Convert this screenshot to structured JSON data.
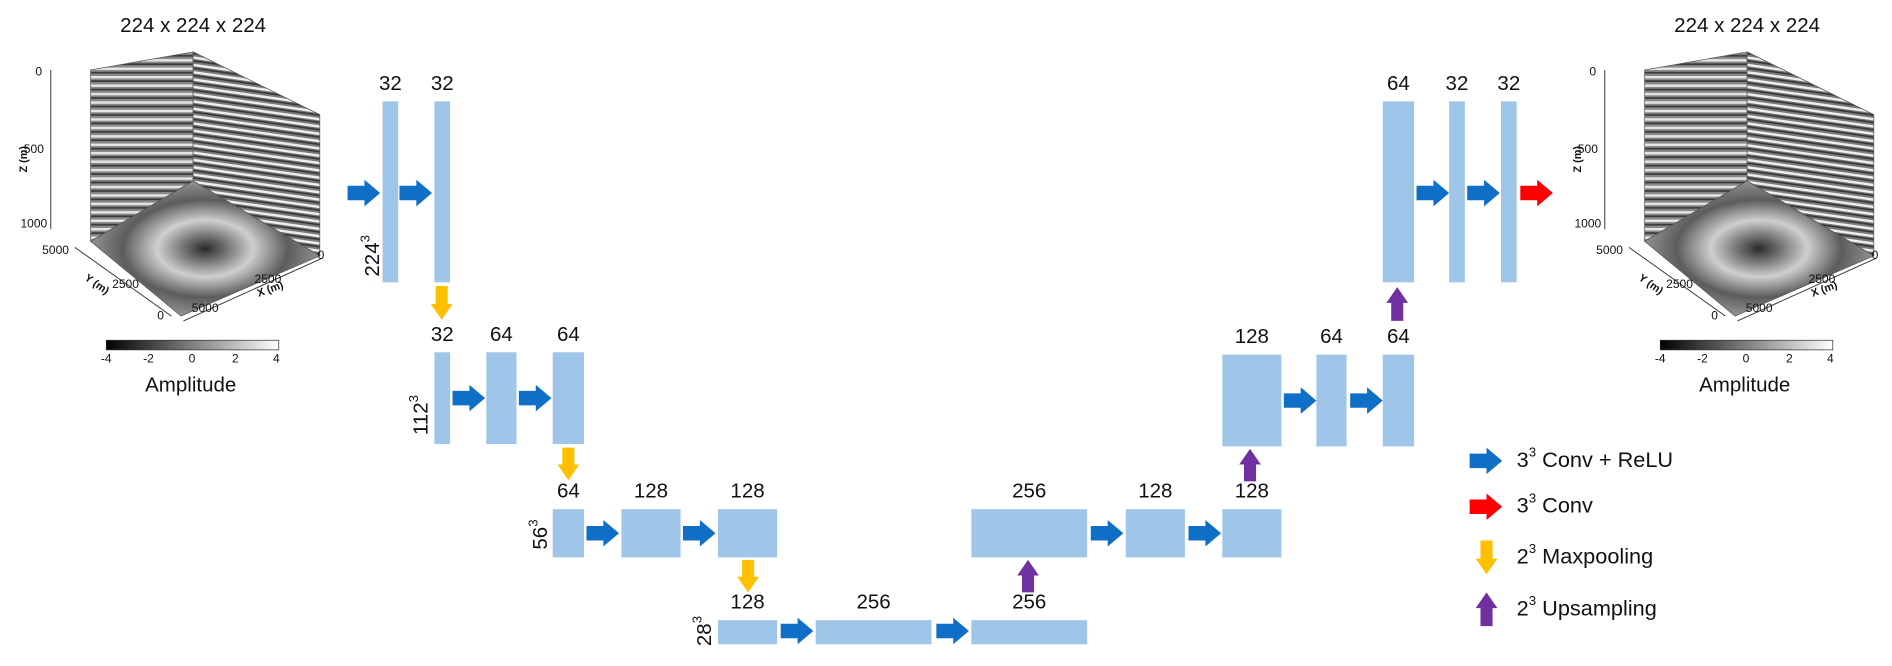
{
  "input_volume": {
    "title": "224 x 224 x 224",
    "z_ticks": [
      "0",
      "500",
      "1000"
    ],
    "z_label": "Z (m)",
    "y_ticks": [
      "5000",
      "2500",
      "0"
    ],
    "y_label": "Y (m)",
    "x_ticks": [
      "0",
      "2500",
      "5000"
    ],
    "x_label": "X (m)",
    "colorbar_ticks": [
      "-4",
      "-2",
      "0",
      "2",
      "4"
    ],
    "colorbar_label": "Amplitude"
  },
  "output_volume": {
    "title": "224 x 224 x 224",
    "z_ticks": [
      "0",
      "500",
      "1000"
    ],
    "z_label": "Z (m)",
    "y_ticks": [
      "5000",
      "2500",
      "0"
    ],
    "y_label": "Y (m)",
    "x_ticks": [
      "0",
      "2500",
      "5000"
    ],
    "x_label": "X (m)",
    "colorbar_ticks": [
      "-4",
      "-2",
      "0",
      "2",
      "4"
    ],
    "colorbar_label": "Amplitude"
  },
  "levels": [
    {
      "base": "224",
      "exp": "3"
    },
    {
      "base": "112",
      "exp": "3"
    },
    {
      "base": "56",
      "exp": "3"
    },
    {
      "base": "28",
      "exp": "3"
    }
  ],
  "blocks": [
    {
      "label": "32"
    },
    {
      "label": "32"
    },
    {
      "label": "32"
    },
    {
      "label": "64"
    },
    {
      "label": "64"
    },
    {
      "label": "64"
    },
    {
      "label": "128"
    },
    {
      "label": "128"
    },
    {
      "label": "128"
    },
    {
      "label": "256"
    },
    {
      "label": "256"
    },
    {
      "label": "256"
    },
    {
      "label": "128"
    },
    {
      "label": "128"
    },
    {
      "label": "128"
    },
    {
      "label": "64"
    },
    {
      "label": "64"
    },
    {
      "label": "64"
    },
    {
      "label": "32"
    },
    {
      "label": "32"
    }
  ],
  "legend": [
    {
      "base": "3",
      "exp": "3",
      "text": " Conv + ReLU"
    },
    {
      "base": "3",
      "exp": "3",
      "text": " Conv"
    },
    {
      "base": "2",
      "exp": "3",
      "text": " Maxpooling"
    },
    {
      "base": "2",
      "exp": "3",
      "text": " Upsampling"
    }
  ]
}
